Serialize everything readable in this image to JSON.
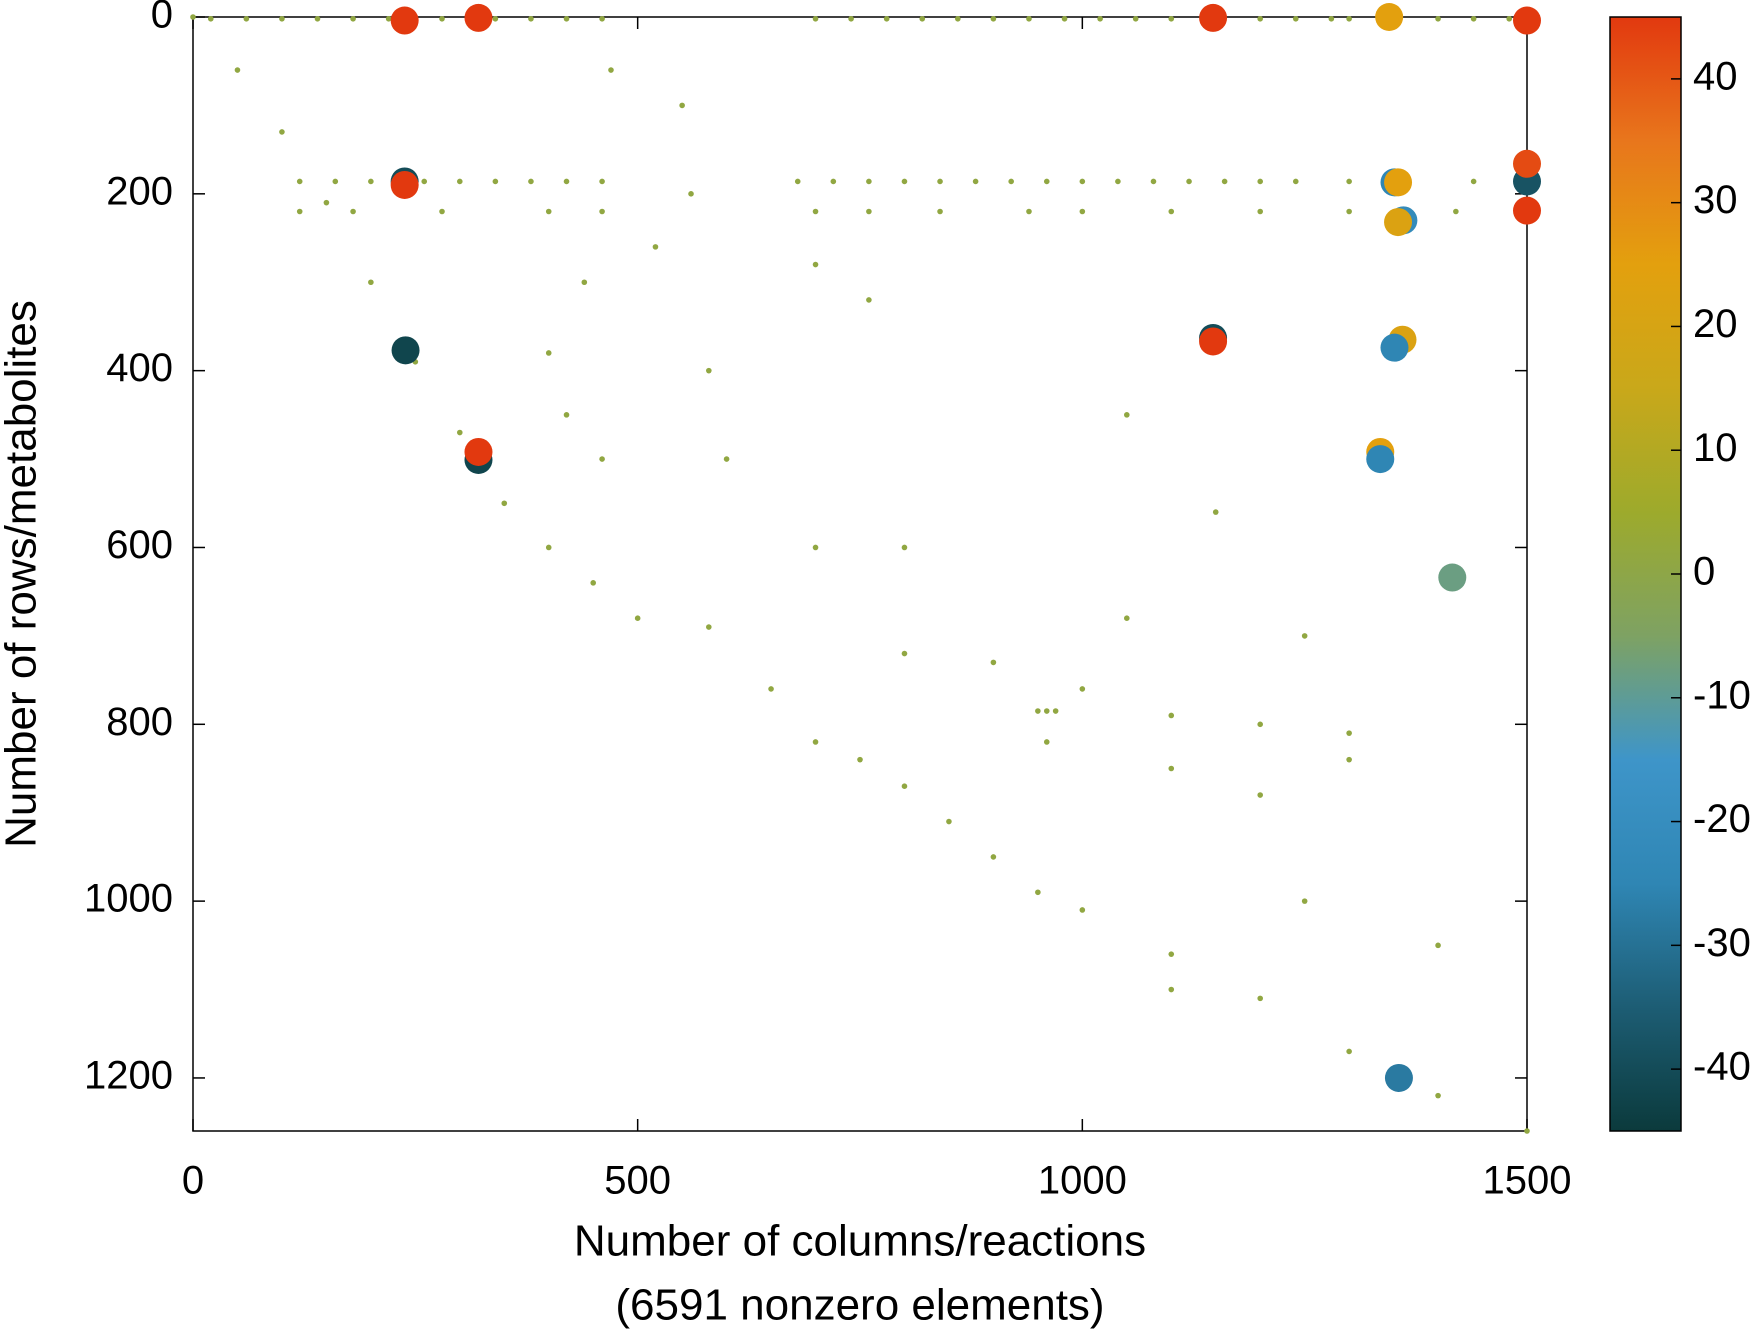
{
  "chart_data": {
    "type": "scatter",
    "xlabel": [
      "Number of columns/reactions",
      "(6591 nonzero elements)"
    ],
    "ylabel": "Number of rows/metabolites",
    "xlim": [
      0,
      1500
    ],
    "ylim": [
      0,
      1260
    ],
    "y_reversed": true,
    "xticks": [
      0,
      500,
      1000,
      1500
    ],
    "yticks": [
      0,
      200,
      400,
      600,
      800,
      1000,
      1200
    ],
    "clim": [
      -45,
      45
    ],
    "cticks": [
      -40,
      -30,
      -20,
      -10,
      0,
      10,
      20,
      30,
      40
    ],
    "colormap": [
      "#0b3a3c",
      "#1d5d74",
      "#2f86b4",
      "#3e95c9",
      "#7ea263",
      "#9daa2c",
      "#c9a81a",
      "#e3a00e",
      "#e8761c",
      "#e2390f"
    ],
    "x": [
      0,
      50,
      100,
      150,
      200,
      250,
      300,
      350,
      400,
      450,
      500,
      580,
      650,
      700,
      750,
      800,
      850,
      900,
      950,
      1000,
      1100,
      1200,
      1300,
      1400,
      1500,
      20,
      60,
      100,
      140,
      180,
      220,
      280,
      340,
      380,
      420,
      460,
      700,
      740,
      780,
      820,
      860,
      900,
      940,
      980,
      1020,
      1060,
      1100,
      1200,
      1240,
      1280,
      1300,
      1400,
      1440,
      1480,
      120,
      160,
      200,
      260,
      300,
      340,
      380,
      420,
      460,
      680,
      720,
      760,
      800,
      840,
      880,
      920,
      960,
      1000,
      1040,
      1080,
      1120,
      1160,
      1200,
      1240,
      1300,
      1440,
      120,
      180,
      280,
      400,
      460,
      700,
      760,
      840,
      940,
      1000,
      1100,
      1200,
      1300,
      1420,
      550,
      560,
      580,
      600,
      700,
      800,
      900,
      1000,
      1100,
      1200,
      1300,
      950,
      960,
      970,
      960,
      1100,
      1200,
      1300,
      1100,
      1250,
      1400,
      520,
      470,
      700,
      760,
      1050,
      1150,
      1250,
      1050,
      800,
      400,
      420,
      460,
      440,
      238,
      321,
      1147,
      1500,
      1345,
      238,
      238,
      1500,
      1500,
      1500,
      1351,
      1355,
      1361,
      1355,
      1147,
      1147,
      239,
      1351,
      1360,
      321,
      321,
      1335,
      1335,
      1356,
      1416
    ],
    "y": [
      0,
      60,
      130,
      210,
      300,
      390,
      470,
      550,
      600,
      640,
      680,
      690,
      760,
      820,
      840,
      870,
      910,
      950,
      990,
      1010,
      1060,
      1110,
      1170,
      1220,
      1260,
      2,
      2,
      2,
      2,
      2,
      2,
      2,
      2,
      2,
      2,
      2,
      2,
      2,
      2,
      2,
      2,
      2,
      2,
      2,
      2,
      2,
      2,
      2,
      2,
      2,
      2,
      2,
      2,
      2,
      186,
      186,
      186,
      186,
      186,
      186,
      186,
      186,
      186,
      186,
      186,
      186,
      186,
      186,
      186,
      186,
      186,
      186,
      186,
      186,
      186,
      186,
      186,
      186,
      186,
      186,
      220,
      220,
      220,
      220,
      220,
      220,
      220,
      220,
      220,
      220,
      220,
      220,
      220,
      220,
      100,
      200,
      400,
      500,
      600,
      720,
      730,
      760,
      790,
      800,
      810,
      785,
      785,
      785,
      820,
      850,
      880,
      840,
      1100,
      1000,
      1050,
      260,
      60,
      280,
      320,
      450,
      560,
      700,
      680,
      600,
      380,
      450,
      500,
      300,
      4,
      1,
      1,
      4,
      0,
      186,
      190,
      166,
      186,
      219,
      187,
      187,
      230,
      232,
      363,
      367,
      377,
      374,
      365,
      492,
      501,
      492,
      500,
      1200,
      634
    ],
    "values": [
      1,
      1,
      1,
      1,
      1,
      1,
      1,
      1,
      1,
      1,
      1,
      1,
      1,
      1,
      1,
      1,
      1,
      1,
      1,
      1,
      1,
      1,
      1,
      1,
      1,
      1,
      1,
      1,
      1,
      1,
      1,
      1,
      1,
      1,
      1,
      1,
      1,
      1,
      1,
      1,
      1,
      1,
      1,
      1,
      1,
      1,
      1,
      1,
      1,
      1,
      1,
      1,
      1,
      1,
      1,
      1,
      1,
      1,
      1,
      1,
      1,
      1,
      1,
      1,
      1,
      1,
      1,
      1,
      1,
      1,
      1,
      1,
      1,
      1,
      1,
      1,
      1,
      1,
      1,
      1,
      1,
      1,
      1,
      1,
      1,
      1,
      1,
      1,
      1,
      1,
      1,
      1,
      1,
      1,
      1,
      1,
      1,
      1,
      1,
      1,
      1,
      1,
      1,
      1,
      1,
      1,
      1,
      1,
      1,
      1,
      1,
      1,
      1,
      1,
      1,
      1,
      1,
      1,
      1,
      1,
      1,
      1,
      1,
      1,
      1,
      1,
      1,
      1,
      45,
      45,
      45,
      45,
      25,
      -40,
      45,
      42,
      -38,
      45,
      -25,
      25,
      -22,
      22,
      -40,
      45,
      -42,
      -25,
      22,
      45,
      -42,
      25,
      -25,
      -28,
      -8
    ]
  }
}
